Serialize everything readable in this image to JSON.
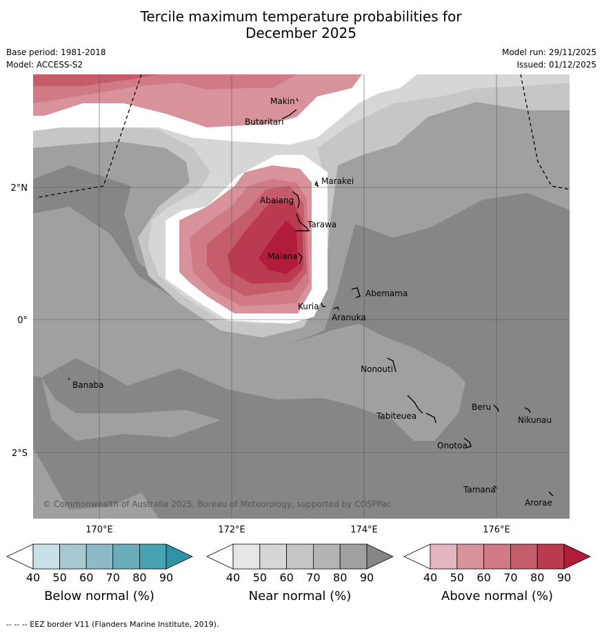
{
  "title_line1": "Tercile maximum temperature probabilities for",
  "title_line2": "December 2025",
  "base_period": "Base period: 1981-2018",
  "model": "Model: ACCESS-S2",
  "model_run": "Model run: 29/11/2025",
  "issued": "Issued: 01/12/2025",
  "copyright": "© Commonwealth of Australia 2025, Bureau of Meteorology, supported by COSPPac",
  "lat_labels": [
    "2°N",
    "0°",
    "2°S"
  ],
  "lon_labels": [
    "170°E",
    "172°E",
    "174°E",
    "176°E"
  ],
  "places": [
    "Makin",
    "Butaritari",
    "Marakei",
    "Abaiang",
    "Tarawa",
    "Maiana",
    "Abemama",
    "Kuria",
    "Aranuka",
    "Nonouti",
    "Banaba",
    "Beru",
    "Nikunau",
    "Tabiteuea",
    "Onotoa",
    "Tamana",
    "Arorae"
  ],
  "colorbars": [
    {
      "label": "Below normal (%)",
      "ticks": [
        "40",
        "50",
        "60",
        "70",
        "80",
        "90"
      ],
      "colors": [
        "#ffffff",
        "#c8e1e8",
        "#a6c8d0",
        "#8cb9c5",
        "#6aacbb",
        "#47a2b2",
        "#2e93a6"
      ]
    },
    {
      "label": "Near normal (%)",
      "ticks": [
        "40",
        "50",
        "60",
        "70",
        "80",
        "90"
      ],
      "colors": [
        "#ffffff",
        "#e6e6e6",
        "#d6d6d6",
        "#c6c6c6",
        "#b4b4b4",
        "#a0a0a0",
        "#868686"
      ]
    },
    {
      "label": "Above normal (%)",
      "ticks": [
        "40",
        "50",
        "60",
        "70",
        "80",
        "90"
      ],
      "colors": [
        "#ffffff",
        "#e4b6bd",
        "#d8929c",
        "#cf7a84",
        "#c55c6a",
        "#ba3b50",
        "#b01c3a"
      ]
    }
  ],
  "footer": "--  --  -- EEZ border V11 (Flanders Marine Institute, 2019)."
}
